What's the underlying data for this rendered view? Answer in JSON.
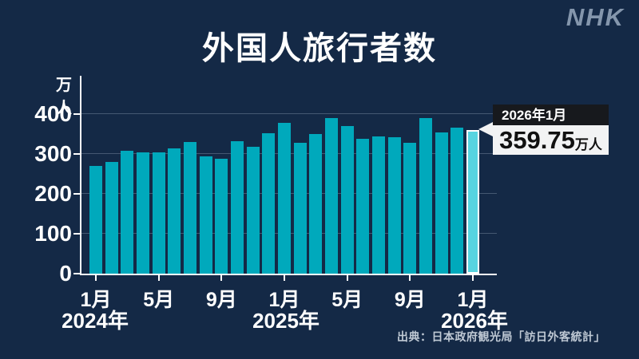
{
  "brand": {
    "logo": "NHK"
  },
  "title": "外国人旅行者数",
  "source": "出典：日本政府観光局「訪日外客統計」",
  "callout": {
    "date": "2026年1月",
    "value": "359.75",
    "unit": "万人"
  },
  "chart_data": {
    "type": "bar",
    "title": "外国人旅行者数",
    "unit_label": "万人",
    "ylim": [
      0,
      400
    ],
    "yticks": [
      0,
      100,
      200,
      300,
      400
    ],
    "grid": "horizontal",
    "x": [
      "2024-01",
      "2024-02",
      "2024-03",
      "2024-04",
      "2024-05",
      "2024-06",
      "2024-07",
      "2024-08",
      "2024-09",
      "2024-10",
      "2024-11",
      "2024-12",
      "2025-01",
      "2025-02",
      "2025-03",
      "2025-04",
      "2025-05",
      "2025-06",
      "2025-07",
      "2025-08",
      "2025-09",
      "2025-10",
      "2025-11",
      "2025-12",
      "2026-01"
    ],
    "values": [
      270,
      280,
      309,
      304,
      304,
      314,
      330,
      294,
      289,
      332,
      319,
      352,
      379,
      328,
      351,
      391,
      370,
      339,
      344,
      343,
      328,
      390,
      355,
      366,
      359.75
    ],
    "highlight_index": 24,
    "bar_color": "#00a9bc",
    "highlight_color": "#57d4e0",
    "x_ticks": [
      {
        "index": 0,
        "month": "1月",
        "year": "2024年"
      },
      {
        "index": 4,
        "month": "5月",
        "year": null
      },
      {
        "index": 8,
        "month": "9月",
        "year": null
      },
      {
        "index": 12,
        "month": "1月",
        "year": "2025年"
      },
      {
        "index": 16,
        "month": "5月",
        "year": null
      },
      {
        "index": 20,
        "month": "9月",
        "year": null
      },
      {
        "index": 24,
        "month": "1月",
        "year": "2026年"
      }
    ]
  }
}
